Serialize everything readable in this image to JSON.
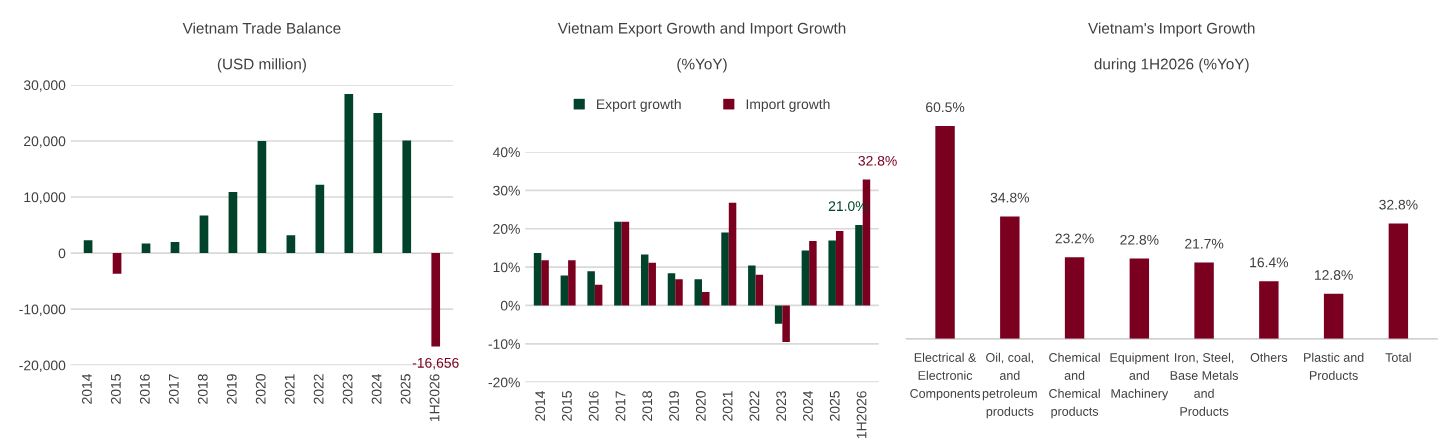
{
  "chart_data": [
    {
      "type": "bar",
      "title": "Vietnam Trade Balance",
      "subtitle": "(USD million)",
      "categories": [
        "2014",
        "2015",
        "2016",
        "2017",
        "2018",
        "2019",
        "2020",
        "2021",
        "2022",
        "2023",
        "2024",
        "2025",
        "1H2026"
      ],
      "values": [
        2300,
        -3700,
        1700,
        2000,
        6700,
        10900,
        20000,
        3200,
        12200,
        28400,
        25000,
        20100,
        -16656
      ],
      "colors": [
        "#00432a",
        "#7b0020",
        "#00432a",
        "#00432a",
        "#00432a",
        "#00432a",
        "#00432a",
        "#00432a",
        "#00432a",
        "#00432a",
        "#00432a",
        "#00432a",
        "#7b0020"
      ],
      "value_labels": [
        null,
        null,
        null,
        null,
        null,
        null,
        null,
        null,
        null,
        null,
        null,
        null,
        "-16,656"
      ],
      "ylim": [
        -20000,
        30000
      ],
      "yticks": [
        {
          "value": -20000,
          "label": "-20,000"
        },
        {
          "value": -10000,
          "label": "-10,000"
        },
        0,
        {
          "value": 10000,
          "label": "10,000"
        },
        {
          "value": 20000,
          "label": "20,000"
        },
        {
          "value": 30000,
          "label": "30,000"
        }
      ],
      "grid": "y",
      "legend": false
    },
    {
      "type": "bar",
      "title": "Vietnam Export Growth and Import Growth",
      "subtitle": "(%YoY)",
      "categories": [
        "2014",
        "2015",
        "2016",
        "2017",
        "2018",
        "2019",
        "2020",
        "2021",
        "2022",
        "2023",
        "2024",
        "2025",
        "1H2026"
      ],
      "series": [
        {
          "name": "Export growth",
          "color": "#00432a",
          "values": [
            13.7,
            7.8,
            8.9,
            21.8,
            13.3,
            8.4,
            6.8,
            19.0,
            10.4,
            -4.8,
            14.3,
            16.9,
            21.0
          ],
          "value_labels": [
            null,
            null,
            null,
            null,
            null,
            null,
            null,
            null,
            null,
            null,
            null,
            null,
            "21.0%"
          ]
        },
        {
          "name": "Import growth",
          "color": "#7b0020",
          "values": [
            11.8,
            11.8,
            5.4,
            21.8,
            11.1,
            6.8,
            3.5,
            26.8,
            8.0,
            -9.5,
            16.8,
            19.4,
            32.8
          ],
          "value_labels": [
            null,
            null,
            null,
            null,
            null,
            null,
            null,
            null,
            null,
            null,
            null,
            null,
            "32.8%"
          ]
        }
      ],
      "ylim": [
        -20,
        40
      ],
      "yticks": [
        {
          "value": -20,
          "label": "-20%"
        },
        {
          "value": -10,
          "label": "-10%"
        },
        {
          "value": 0,
          "label": "0%"
        },
        {
          "value": 10,
          "label": "10%"
        },
        {
          "value": 20,
          "label": "20%"
        },
        {
          "value": 30,
          "label": "30%"
        },
        {
          "value": 40,
          "label": "40%"
        }
      ],
      "grid": "y",
      "legend": "top"
    },
    {
      "type": "bar",
      "title": "Vietnam's Import Growth",
      "subtitle": "during 1H2026 (%YoY)",
      "categories": [
        "Electrical &\nElectronic\nComponents",
        "Oil, coal,\nand\npetroleum\nproducts",
        "Chemical\nand\nChemical\nproducts",
        "Equipment\nand\nMachinery",
        "Iron, Steel,\nBase Metals\nand\nProducts",
        "Others",
        "Plastic and\nProducts",
        "Total"
      ],
      "values": [
        60.5,
        34.8,
        23.2,
        22.8,
        21.7,
        16.4,
        12.8,
        32.8
      ],
      "colors": [
        "#7b0020",
        "#7b0020",
        "#7b0020",
        "#7b0020",
        "#7b0020",
        "#7b0020",
        "#7b0020",
        "#7b0020"
      ],
      "value_labels": [
        "60.5%",
        "34.8%",
        "23.2%",
        "22.8%",
        "21.7%",
        "16.4%",
        "12.8%",
        "32.8%"
      ],
      "tick_labels": "x",
      "grid": false,
      "legend": false
    }
  ]
}
